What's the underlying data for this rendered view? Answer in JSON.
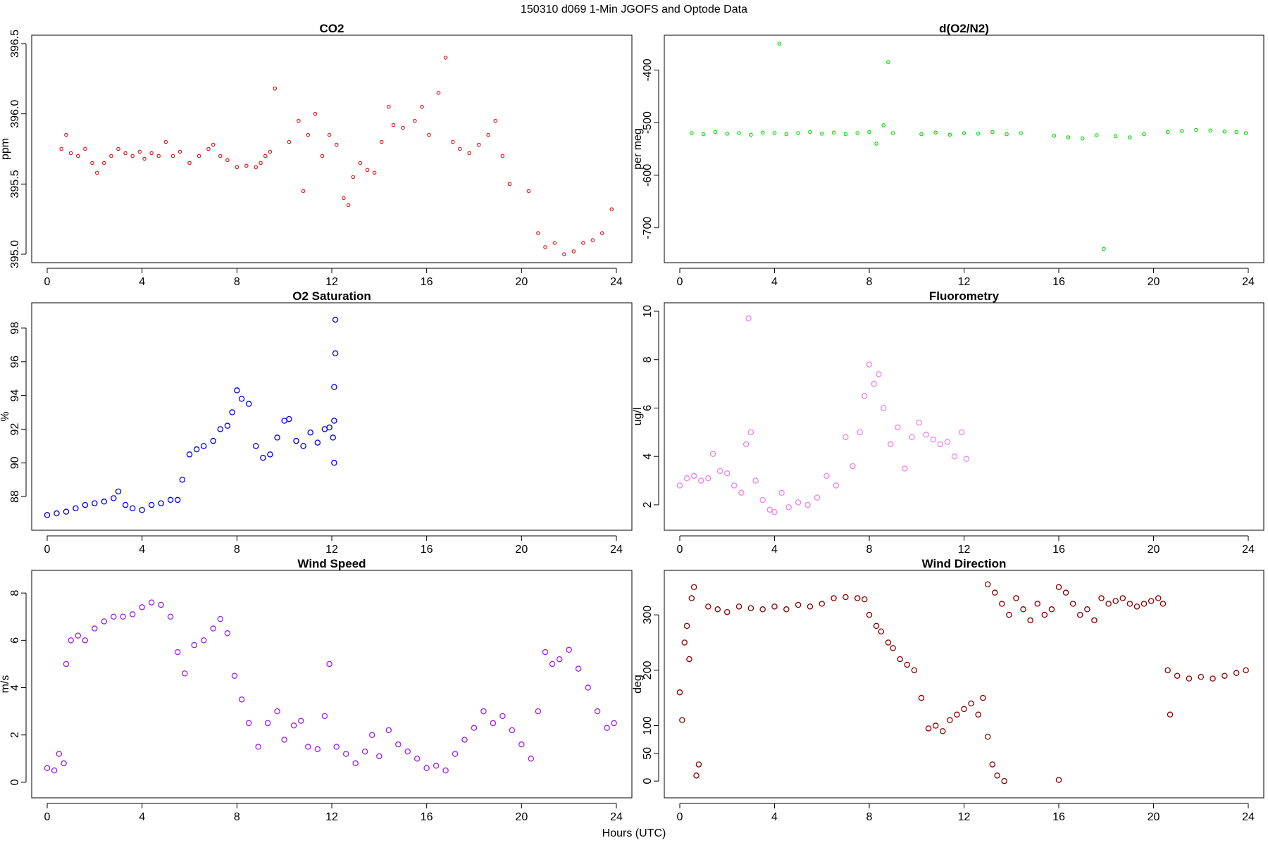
{
  "figure": {
    "title": "150310    d069    1-Min   JGOFS and Optode Data",
    "xlabel": "Hours (UTC)"
  },
  "chart_data": [
    {
      "id": "co2",
      "type": "scatter",
      "title": "CO2",
      "ylabel": "ppm",
      "color": "#e31a1c",
      "marker": "small-circle",
      "xlim": [
        0,
        24
      ],
      "ylim": [
        395.0,
        396.5
      ],
      "xticks": [
        "0",
        "4",
        "8",
        "12",
        "16",
        "20",
        "24"
      ],
      "yticks": [
        "395.0",
        "395.5",
        "396.0",
        "396.5"
      ],
      "series": [
        {
          "name": "CO2",
          "x": [
            0.6,
            0.8,
            1.0,
            1.3,
            1.6,
            1.9,
            2.1,
            2.4,
            2.7,
            3.0,
            3.3,
            3.6,
            3.9,
            4.1,
            4.4,
            4.7,
            5.0,
            5.3,
            5.6,
            6.0,
            6.4,
            6.8,
            7.0,
            7.3,
            7.6,
            8.0,
            8.4,
            8.8,
            9.0,
            9.2,
            9.4,
            9.6,
            10.2,
            10.6,
            10.8,
            11.0,
            11.3,
            11.6,
            11.9,
            12.2,
            12.5,
            12.7,
            12.9,
            13.2,
            13.5,
            13.8,
            14.1,
            14.4,
            14.6,
            15.0,
            15.5,
            15.8,
            16.1,
            16.5,
            16.8,
            17.1,
            17.4,
            17.8,
            18.2,
            18.6,
            18.9,
            19.2,
            19.5,
            20.3,
            20.7,
            21.0,
            21.4,
            21.8,
            22.2,
            22.6,
            23.0,
            23.4,
            23.8
          ],
          "y": [
            395.75,
            395.85,
            395.72,
            395.7,
            395.75,
            395.65,
            395.58,
            395.65,
            395.7,
            395.75,
            395.72,
            395.7,
            395.73,
            395.68,
            395.72,
            395.7,
            395.8,
            395.7,
            395.73,
            395.65,
            395.7,
            395.75,
            395.78,
            395.7,
            395.67,
            395.62,
            395.63,
            395.62,
            395.65,
            395.7,
            395.73,
            396.18,
            395.8,
            395.95,
            395.45,
            395.85,
            396.0,
            395.7,
            395.85,
            395.78,
            395.4,
            395.35,
            395.55,
            395.65,
            395.6,
            395.58,
            395.8,
            396.05,
            395.92,
            395.9,
            395.95,
            396.05,
            395.85,
            396.15,
            396.4,
            395.8,
            395.75,
            395.72,
            395.78,
            395.85,
            395.95,
            395.7,
            395.5,
            395.45,
            395.15,
            395.05,
            395.08,
            395.0,
            395.02,
            395.08,
            395.1,
            395.15,
            395.32
          ]
        }
      ]
    },
    {
      "id": "do2n2",
      "type": "scatter",
      "title": "d(O2/N2)",
      "ylabel": "per meg",
      "color": "#00e000",
      "marker": "small-circle",
      "xlim": [
        0,
        24
      ],
      "ylim": [
        -750,
        -350
      ],
      "xticks": [
        "0",
        "4",
        "8",
        "12",
        "16",
        "20",
        "24"
      ],
      "yticks": [
        "-700",
        "-600",
        "-500",
        "-400"
      ],
      "series": [
        {
          "name": "d(O2/N2)",
          "x": [
            0.5,
            1.0,
            1.5,
            2.0,
            2.5,
            3.0,
            3.5,
            4.0,
            4.2,
            4.5,
            5.0,
            5.5,
            6.0,
            6.5,
            7.0,
            7.5,
            8.0,
            8.3,
            8.6,
            8.8,
            9.0,
            10.2,
            10.8,
            11.4,
            12.0,
            12.6,
            13.2,
            13.8,
            14.4,
            15.8,
            16.4,
            17.0,
            17.6,
            17.9,
            18.4,
            19.0,
            19.6,
            20.6,
            21.2,
            21.8,
            22.4,
            23.0,
            23.5,
            23.9
          ],
          "y": [
            -520,
            -522,
            -518,
            -521,
            -520,
            -523,
            -519,
            -520,
            -350,
            -522,
            -520,
            -518,
            -521,
            -519,
            -522,
            -520,
            -518,
            -540,
            -505,
            -385,
            -520,
            -522,
            -519,
            -523,
            -520,
            -521,
            -518,
            -522,
            -520,
            -525,
            -528,
            -530,
            -524,
            -740,
            -526,
            -528,
            -522,
            -518,
            -516,
            -514,
            -515,
            -517,
            -518,
            -520
          ]
        }
      ]
    },
    {
      "id": "o2sat",
      "type": "scatter",
      "title": "O2 Saturation",
      "ylabel": "%",
      "color": "#0000ee",
      "marker": "circle",
      "xlim": [
        0,
        24
      ],
      "ylim": [
        86.5,
        99
      ],
      "xticks": [
        "0",
        "4",
        "8",
        "12",
        "16",
        "20",
        "24"
      ],
      "yticks": [
        "88",
        "90",
        "92",
        "94",
        "96",
        "98"
      ],
      "series": [
        {
          "name": "O2 Saturation",
          "x": [
            0.0,
            0.4,
            0.8,
            1.2,
            1.6,
            2.0,
            2.4,
            2.8,
            3.0,
            3.3,
            3.6,
            4.0,
            4.4,
            4.8,
            5.2,
            5.5,
            5.7,
            6.0,
            6.3,
            6.6,
            7.0,
            7.3,
            7.6,
            7.8,
            8.0,
            8.2,
            8.5,
            8.8,
            9.1,
            9.4,
            9.7,
            10.0,
            10.2,
            10.5,
            10.8,
            11.1,
            11.4,
            11.7,
            11.9,
            12.05,
            12.1,
            12.1,
            12.1,
            12.15,
            12.15
          ],
          "y": [
            86.9,
            87.0,
            87.1,
            87.3,
            87.5,
            87.6,
            87.7,
            87.9,
            88.3,
            87.5,
            87.3,
            87.2,
            87.5,
            87.6,
            87.8,
            87.8,
            89.0,
            90.5,
            90.8,
            91.0,
            91.3,
            92.0,
            92.2,
            93.0,
            94.3,
            93.8,
            93.5,
            91.0,
            90.3,
            90.5,
            91.5,
            92.5,
            92.6,
            91.3,
            91.0,
            91.8,
            91.2,
            92.0,
            92.1,
            91.5,
            90.0,
            92.5,
            94.5,
            96.5,
            98.5
          ]
        }
      ]
    },
    {
      "id": "fluor",
      "type": "scatter",
      "title": "Fluorometry",
      "ylabel": "ug/l",
      "color": "#ee82ee",
      "marker": "circle",
      "xlim": [
        0,
        24
      ],
      "ylim": [
        1.3,
        10
      ],
      "xticks": [
        "0",
        "4",
        "8",
        "12",
        "16",
        "20",
        "24"
      ],
      "yticks": [
        "2",
        "4",
        "6",
        "8",
        "10"
      ],
      "series": [
        {
          "name": "Fluorometry",
          "x": [
            0.0,
            0.3,
            0.6,
            0.9,
            1.2,
            1.4,
            1.7,
            2.0,
            2.3,
            2.6,
            2.8,
            2.9,
            3.0,
            3.2,
            3.5,
            3.8,
            4.0,
            4.3,
            4.6,
            5.0,
            5.4,
            5.8,
            6.2,
            6.6,
            7.0,
            7.3,
            7.6,
            7.8,
            8.0,
            8.2,
            8.4,
            8.6,
            8.9,
            9.2,
            9.5,
            9.8,
            10.1,
            10.4,
            10.7,
            11.0,
            11.3,
            11.6,
            11.9,
            12.1
          ],
          "y": [
            2.8,
            3.1,
            3.2,
            3.0,
            3.1,
            4.1,
            3.4,
            3.3,
            2.8,
            2.5,
            4.5,
            9.7,
            5.0,
            3.0,
            2.2,
            1.8,
            1.7,
            2.5,
            1.9,
            2.1,
            2.0,
            2.3,
            3.2,
            2.8,
            4.8,
            3.6,
            5.0,
            6.5,
            7.8,
            7.0,
            7.4,
            6.0,
            4.5,
            5.2,
            3.5,
            4.8,
            5.4,
            4.9,
            4.7,
            4.5,
            4.6,
            4.0,
            5.0,
            3.9
          ]
        }
      ]
    },
    {
      "id": "wspd",
      "type": "scatter",
      "title": "Wind Speed",
      "ylabel": "m/s",
      "color": "#a020f0",
      "marker": "circle",
      "xlim": [
        0,
        24
      ],
      "ylim": [
        -0.3,
        8.6
      ],
      "xticks": [
        "0",
        "4",
        "8",
        "12",
        "16",
        "20",
        "24"
      ],
      "yticks": [
        "0",
        "2",
        "4",
        "6",
        "8"
      ],
      "series": [
        {
          "name": "Wind Speed",
          "x": [
            0.0,
            0.3,
            0.5,
            0.7,
            0.8,
            1.0,
            1.3,
            1.6,
            2.0,
            2.4,
            2.8,
            3.2,
            3.6,
            4.0,
            4.4,
            4.8,
            5.2,
            5.5,
            5.8,
            6.2,
            6.6,
            7.0,
            7.3,
            7.6,
            7.9,
            8.2,
            8.5,
            8.9,
            9.3,
            9.7,
            10.0,
            10.4,
            10.7,
            11.0,
            11.4,
            11.7,
            11.9,
            12.2,
            12.6,
            13.0,
            13.4,
            13.7,
            14.0,
            14.4,
            14.8,
            15.2,
            15.6,
            16.0,
            16.4,
            16.8,
            17.2,
            17.6,
            18.0,
            18.4,
            18.8,
            19.2,
            19.6,
            20.0,
            20.4,
            20.7,
            21.0,
            21.3,
            21.6,
            22.0,
            22.4,
            22.8,
            23.2,
            23.6,
            23.9
          ],
          "y": [
            0.6,
            0.5,
            1.2,
            0.8,
            5.0,
            6.0,
            6.2,
            6.0,
            6.5,
            6.8,
            7.0,
            7.0,
            7.1,
            7.4,
            7.6,
            7.5,
            7.0,
            5.5,
            4.6,
            5.8,
            6.0,
            6.5,
            6.9,
            6.3,
            4.5,
            3.5,
            2.5,
            1.5,
            2.5,
            3.0,
            1.8,
            2.4,
            2.6,
            1.5,
            1.4,
            2.8,
            5.0,
            1.5,
            1.2,
            0.8,
            1.3,
            2.0,
            1.1,
            2.2,
            1.6,
            1.3,
            1.0,
            0.6,
            0.7,
            0.5,
            1.2,
            1.8,
            2.3,
            3.0,
            2.5,
            2.8,
            2.2,
            1.6,
            1.0,
            3.0,
            5.5,
            5.0,
            5.2,
            5.6,
            4.8,
            4.0,
            3.0,
            2.3,
            2.5
          ]
        }
      ]
    },
    {
      "id": "wdir",
      "type": "scatter",
      "title": "Wind Direction",
      "ylabel": "deg",
      "color": "#8b0000",
      "marker": "circle",
      "xlim": [
        0,
        24
      ],
      "ylim": [
        -15,
        365
      ],
      "xticks": [
        "0",
        "4",
        "8",
        "12",
        "16",
        "20",
        "24"
      ],
      "yticks": [
        "0",
        "50",
        "100",
        "200",
        "300"
      ],
      "series": [
        {
          "name": "Wind Direction",
          "x": [
            0.0,
            0.1,
            0.2,
            0.3,
            0.4,
            0.5,
            0.6,
            0.7,
            0.8,
            1.2,
            1.6,
            2.0,
            2.5,
            3.0,
            3.5,
            4.0,
            4.5,
            5.0,
            5.5,
            6.0,
            6.5,
            7.0,
            7.5,
            7.8,
            8.0,
            8.3,
            8.5,
            8.8,
            9.0,
            9.3,
            9.6,
            9.9,
            10.2,
            10.5,
            10.8,
            11.1,
            11.4,
            11.7,
            12.0,
            12.3,
            12.6,
            12.8,
            13.0,
            13.2,
            13.4,
            13.7,
            13.0,
            13.3,
            13.6,
            13.9,
            14.2,
            14.5,
            14.8,
            15.1,
            15.4,
            15.7,
            16.0,
            16.0,
            16.3,
            16.6,
            16.9,
            17.2,
            17.5,
            17.8,
            18.1,
            18.4,
            18.7,
            19.0,
            19.3,
            19.6,
            19.9,
            20.2,
            20.4,
            20.6,
            20.7,
            21.0,
            21.5,
            22.0,
            22.5,
            23.0,
            23.5,
            23.9
          ],
          "y": [
            160,
            110,
            250,
            280,
            220,
            330,
            350,
            10,
            30,
            315,
            310,
            305,
            315,
            312,
            310,
            315,
            310,
            318,
            315,
            320,
            330,
            332,
            330,
            328,
            300,
            280,
            270,
            250,
            240,
            220,
            210,
            200,
            150,
            95,
            100,
            90,
            110,
            120,
            130,
            140,
            120,
            150,
            80,
            30,
            10,
            0,
            355,
            340,
            320,
            300,
            330,
            310,
            290,
            320,
            300,
            310,
            350,
            2,
            340,
            320,
            300,
            310,
            290,
            330,
            320,
            325,
            330,
            320,
            315,
            320,
            325,
            330,
            320,
            200,
            120,
            190,
            185,
            188,
            185,
            190,
            195,
            200
          ]
        }
      ]
    }
  ]
}
